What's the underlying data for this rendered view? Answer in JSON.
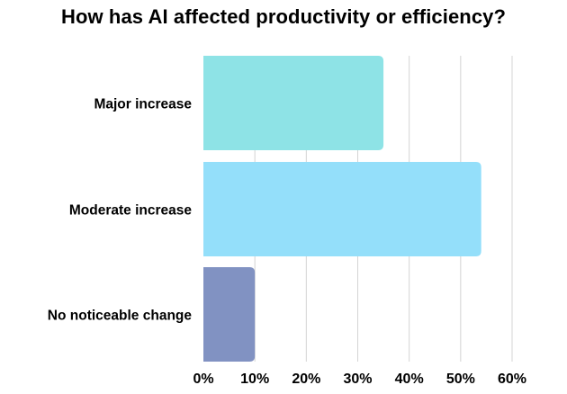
{
  "chart_data": {
    "type": "bar",
    "orientation": "horizontal",
    "title": "How has AI affected productivity or efficiency?",
    "xlabel": "",
    "ylabel": "",
    "categories": [
      "Major increase",
      "Moderate increase",
      "No noticeable change"
    ],
    "values": [
      35,
      54,
      10
    ],
    "value_unit": "%",
    "xlim": [
      0,
      60
    ],
    "x_ticks": [
      "0%",
      "10%",
      "20%",
      "30%",
      "40%",
      "50%",
      "60%"
    ],
    "grid": "vertical",
    "legend": "none",
    "bar_colors": [
      "#8ee3e6",
      "#94dffa",
      "#8192c2"
    ],
    "grid_color": "#d4d4d4"
  }
}
